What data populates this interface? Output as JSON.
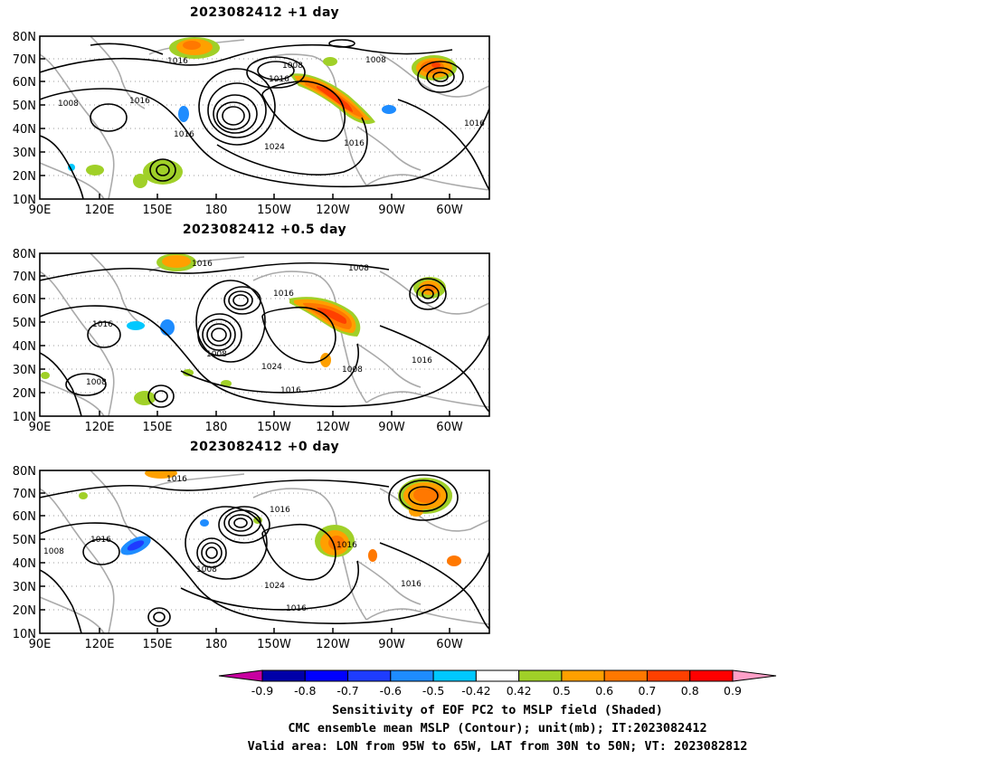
{
  "panels": [
    {
      "title": "2023082412 +1 day",
      "lat_ticks": [
        "80N",
        "70N",
        "60N",
        "50N",
        "40N",
        "30N",
        "20N",
        "10N"
      ],
      "lon_ticks": [
        "90E",
        "120E",
        "150E",
        "180",
        "150W",
        "120W",
        "90W",
        "60W"
      ],
      "contour_labels": [
        "1016",
        "1008",
        "1016",
        "1008",
        "1016",
        "1024",
        "1016",
        "1016",
        "1008",
        "1016"
      ]
    },
    {
      "title": "2023082412 +0.5 day",
      "lat_ticks": [
        "80N",
        "70N",
        "60N",
        "50N",
        "40N",
        "30N",
        "20N",
        "10N"
      ],
      "lon_ticks": [
        "90E",
        "120E",
        "150E",
        "180",
        "150W",
        "120W",
        "90W",
        "60W"
      ],
      "contour_labels": [
        "1016",
        "1008",
        "1016",
        "1016",
        "1008",
        "1024",
        "1008",
        "1016",
        "1008",
        "1016"
      ]
    },
    {
      "title": "2023082412 +0 day",
      "lat_ticks": [
        "80N",
        "70N",
        "60N",
        "50N",
        "40N",
        "30N",
        "20N",
        "10N"
      ],
      "lon_ticks": [
        "90E",
        "120E",
        "150E",
        "180",
        "150W",
        "120W",
        "90W",
        "60W"
      ],
      "contour_labels": [
        "1016",
        "1016",
        "1008",
        "1016",
        "1008",
        "1024",
        "1016",
        "1016",
        "1016"
      ]
    }
  ],
  "colorbar": {
    "labels": [
      "-0.9",
      "-0.8",
      "-0.7",
      "-0.6",
      "-0.5",
      "-0.42",
      "0.42",
      "0.5",
      "0.6",
      "0.7",
      "0.8",
      "0.9"
    ],
    "colors": [
      "#0000a8",
      "#0000ff",
      "#1e3cff",
      "#1e8cff",
      "#00c8ff",
      "#ffffff",
      "#a0d028",
      "#ffa000",
      "#ff7800",
      "#ff4000",
      "#ff0000"
    ],
    "low_cap_color": "#c800a0",
    "high_cap_color": "#ffa0c8"
  },
  "footer": {
    "line1": "Sensitivity of EOF PC2 to MSLP field (Shaded)",
    "line2": "CMC ensemble mean MSLP (Contour); unit(mb); IT:2023082412",
    "line3": "Valid area: LON from 95W to 65W, LAT from 30N to 50N; VT: 2023082812"
  }
}
